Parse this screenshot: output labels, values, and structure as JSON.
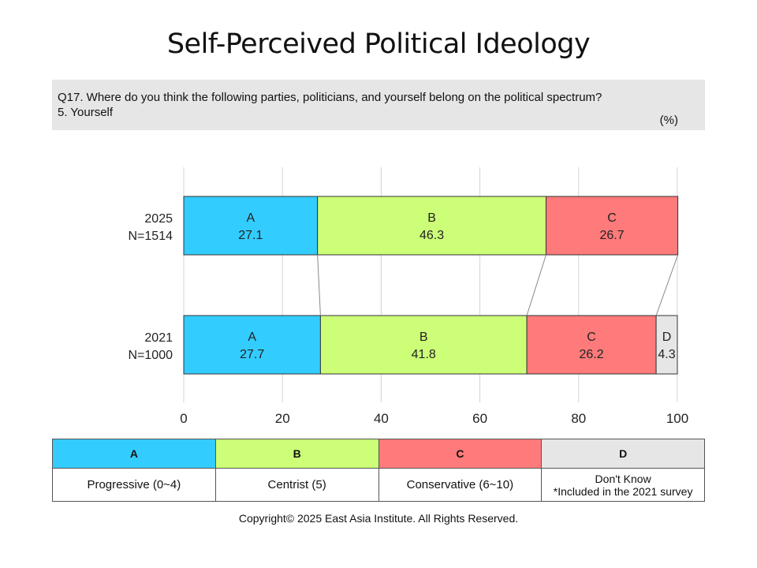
{
  "title": "Self-Perceived Political Ideology",
  "question": {
    "line1": "Q17. Where do you think the following parties, politicians, and yourself belong on the political spectrum?",
    "line2": "5. Yourself",
    "unit": "(%)"
  },
  "chart_data": {
    "type": "bar",
    "orientation": "horizontal",
    "stacked": true,
    "title": "Self-Perceived Political Ideology",
    "xlim": [
      0,
      100
    ],
    "xticks": [
      0,
      20,
      40,
      60,
      80,
      100
    ],
    "grid": true,
    "rows": [
      {
        "label_line1": "2025",
        "label_line2": "N=1514",
        "segments": [
          {
            "key": "A",
            "value": 27.1
          },
          {
            "key": "B",
            "value": 46.3
          },
          {
            "key": "C",
            "value": 26.7
          }
        ]
      },
      {
        "label_line1": "2021",
        "label_line2": "N=1000",
        "segments": [
          {
            "key": "A",
            "value": 27.7
          },
          {
            "key": "B",
            "value": 41.8
          },
          {
            "key": "C",
            "value": 26.2
          },
          {
            "key": "D",
            "value": 4.3
          }
        ]
      }
    ],
    "colors": {
      "A": "#33ccff",
      "B": "#ccff77",
      "C": "#ff7a7a",
      "D": "#e6e6e6"
    }
  },
  "legend": {
    "A": {
      "key": "A",
      "label": "Progressive (0~4)",
      "color": "#33ccff"
    },
    "B": {
      "key": "B",
      "label": "Centrist (5)",
      "color": "#ccff77"
    },
    "C": {
      "key": "C",
      "label": "Conservative  (6~10)",
      "color": "#ff7a7a"
    },
    "D": {
      "key": "D",
      "label": "Don't Know",
      "note": "*Included in the 2021 survey",
      "color": "#e6e6e6"
    }
  },
  "copyright": "Copyright© 2025 East Asia Institute. All Rights Reserved."
}
